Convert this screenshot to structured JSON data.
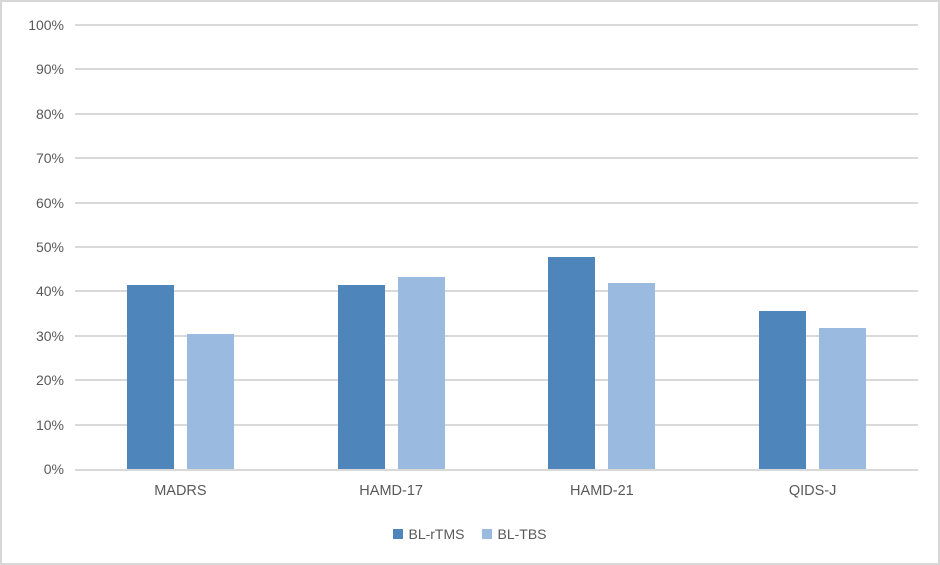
{
  "chart_data": {
    "type": "bar",
    "title": "",
    "xlabel": "",
    "ylabel": "",
    "categories": [
      "MADRS",
      "HAMD-17",
      "HAMD-21",
      "QIDS-J"
    ],
    "series": [
      {
        "name": "BL-rTMS",
        "color": "#4E86BC",
        "values": [
          41.4,
          41.4,
          47.8,
          35.6
        ]
      },
      {
        "name": "BL-TBS",
        "color": "#9ABADF",
        "values": [
          30.3,
          43.3,
          41.9,
          31.7
        ]
      }
    ],
    "ylim": [
      0,
      100
    ],
    "y_tick_labels": [
      "0%",
      "10%",
      "20%",
      "30%",
      "40%",
      "50%",
      "60%",
      "70%",
      "80%",
      "90%",
      "100%"
    ],
    "grid": true,
    "legend_position": "bottom"
  },
  "colors": {
    "gridline": "#D9D9D9",
    "axis_line": "#D9D9D9",
    "tick_text": "#595959",
    "frame_border": "#D7D7D7",
    "background": "#FFFFFF"
  }
}
